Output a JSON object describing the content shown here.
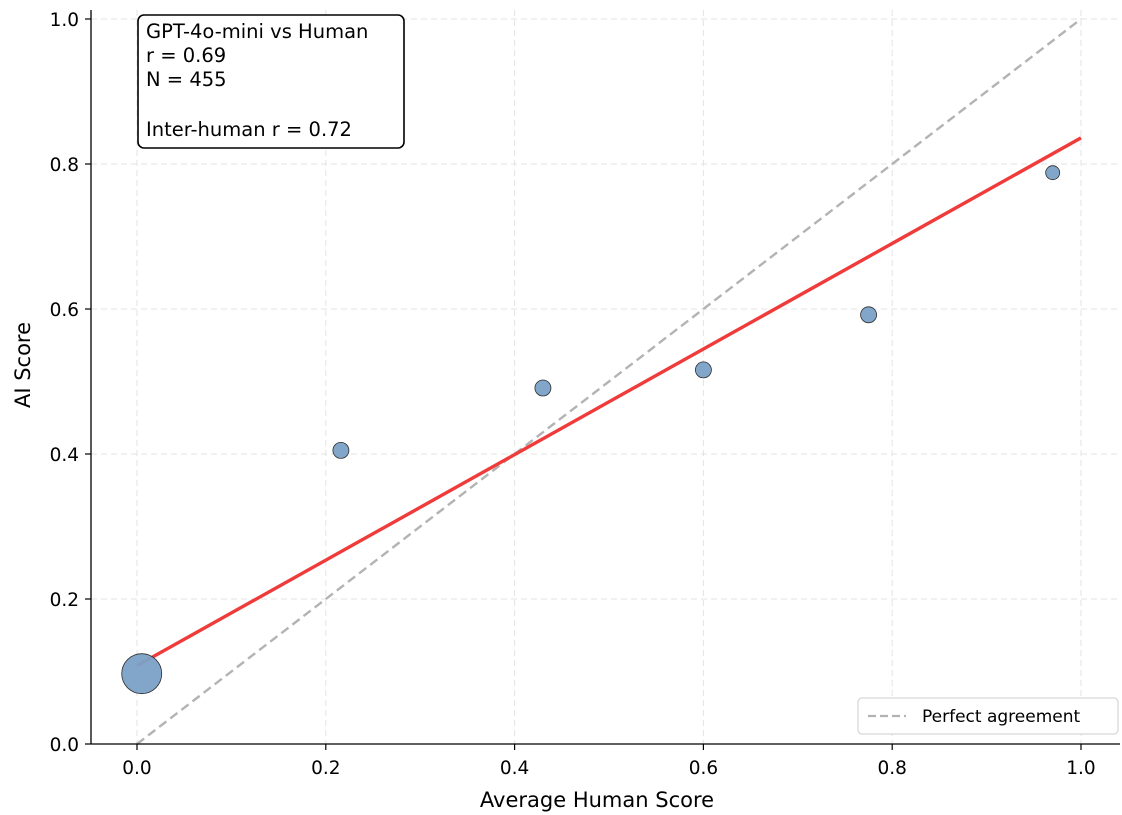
{
  "chart_data": {
    "type": "scatter",
    "xlabel": "Average Human Score",
    "ylabel": "AI Score",
    "xlim": [
      -0.05,
      1.04
    ],
    "ylim": [
      0.0,
      1.01
    ],
    "xticks": [
      "0.0",
      "0.2",
      "0.4",
      "0.6",
      "0.8",
      "1.0"
    ],
    "yticks": [
      "0.0",
      "0.2",
      "0.4",
      "0.6",
      "0.8",
      "1.0"
    ],
    "grid": true,
    "points": [
      {
        "x": 0.005,
        "y": 0.097,
        "size": "large"
      },
      {
        "x": 0.216,
        "y": 0.405,
        "size": "small"
      },
      {
        "x": 0.43,
        "y": 0.491,
        "size": "small"
      },
      {
        "x": 0.6,
        "y": 0.516,
        "size": "small"
      },
      {
        "x": 0.775,
        "y": 0.592,
        "size": "small"
      },
      {
        "x": 0.97,
        "y": 0.788,
        "size": "tiny"
      }
    ],
    "fit_line": {
      "x": [
        0.0,
        1.0
      ],
      "y": [
        0.108,
        0.836
      ],
      "color": "#f03b3b"
    },
    "reference_line": {
      "x": [
        0.0,
        1.0
      ],
      "y": [
        0.0,
        1.0
      ],
      "color": "#b3b3b3"
    },
    "legend": {
      "label": "Perfect agreement",
      "position": "bottom-right"
    },
    "annotation": {
      "lines": [
        "GPT-4o-mini vs Human",
        "r = 0.69",
        "N = 455",
        "",
        "Inter-human r = 0.72"
      ],
      "position": "top-left"
    },
    "point_color": "#7ba1c7"
  }
}
